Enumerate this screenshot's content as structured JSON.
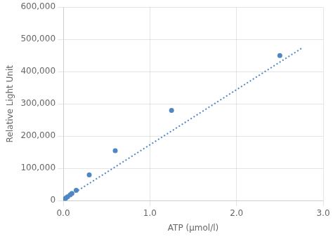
{
  "chart_data": {
    "type": "scatter",
    "xlabel": "ATP (μmol/l)",
    "ylabel": "Relative Light Unit",
    "series": [
      {
        "type": "line",
        "line_style": "dotted",
        "color": "#4e87c4",
        "x": [
          0.0,
          2.75
        ],
        "values": [
          2000,
          472250
        ]
      },
      {
        "type": "scatter",
        "marker": "circle",
        "color": "#4e87c4",
        "x": [
          0.01,
          0.02,
          0.03,
          0.05,
          0.08,
          0.1,
          0.15,
          0.3,
          0.6,
          1.25,
          2.5
        ],
        "values": [
          3000,
          5000,
          8000,
          12000,
          18000,
          22000,
          32000,
          80000,
          155000,
          280000,
          450000
        ]
      }
    ],
    "xlim": [
      0,
      3.0
    ],
    "ylim": [
      0,
      600000
    ],
    "xticks": [
      {
        "value": 0.0,
        "label": "0.0"
      },
      {
        "value": 1.0,
        "label": "1.0"
      },
      {
        "value": 2.0,
        "label": "2.0"
      },
      {
        "value": 3.0,
        "label": "3.0"
      }
    ],
    "yticks": [
      0,
      {
        "value": 100000,
        "label": "100,000"
      },
      {
        "value": 200000,
        "label": "200,000"
      },
      {
        "value": 300000,
        "label": "300,000"
      },
      {
        "value": 400000,
        "label": "400,000"
      },
      {
        "value": 500000,
        "label": "500,000"
      },
      {
        "value": 600000,
        "label": "600,000"
      }
    ],
    "grid": true
  }
}
